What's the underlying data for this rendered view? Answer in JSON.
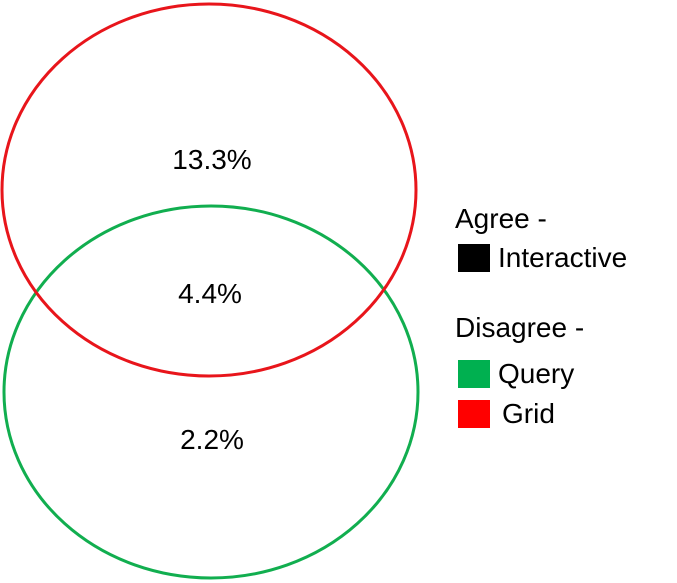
{
  "diagram": {
    "regions": {
      "red_only": "13.3%",
      "overlap": "4.4%",
      "green_only": "2.2%"
    },
    "circle_colors": {
      "red": "#e8151b",
      "green": "#11ae4f"
    }
  },
  "legend": {
    "agree_heading": "Agree -",
    "disagree_heading": "Disagree -",
    "items": [
      {
        "label": "Interactive",
        "color": "#000000"
      },
      {
        "label": "Query",
        "color": "#00b050"
      },
      {
        "label": "Grid",
        "color": "#ff0000"
      }
    ]
  }
}
